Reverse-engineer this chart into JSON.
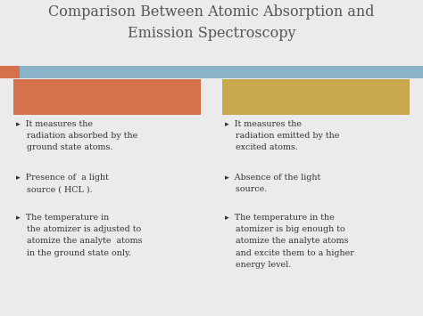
{
  "title_line1": "Comparison Between Atomic Absorption and",
  "title_line2": "Emission Spectroscopy",
  "title_fontsize": 11.5,
  "title_color": "#555555",
  "bg_color": "#ebebeb",
  "header_bar_color": "#8ab4c9",
  "left_box_color": "#d4704a",
  "right_box_color": "#c9a84c",
  "text_color": "#333333",
  "bullet_fontsize": 6.8,
  "arrow_color": "#8B6914",
  "left_bullets": [
    "▸  It measures the\n    radiation absorbed by the\n    ground state atoms.",
    "▸  Presence of  a light\n    source ( HCL ).",
    "▸  The temperature in\n    the atomizer is adjusted to\n    atomize the analyte  atoms\n    in the ground state only."
  ],
  "right_bullets": [
    "▸  It measures the\n    radiation emitted by the\n    excited atoms.",
    "▸  Absence of the light\n    source.",
    "▸  The temperature in the\n    atomizer is big enough to\n    atomize the analyte atoms\n    and excite them to a higher\n    energy level."
  ]
}
